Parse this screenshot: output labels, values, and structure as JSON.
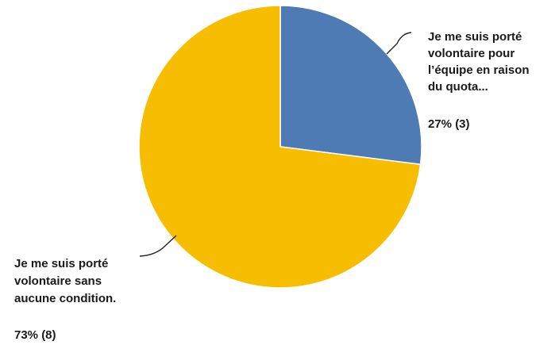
{
  "chart_data": {
    "type": "pie",
    "slices": [
      {
        "label_lines": [
          "Je me suis porté",
          "volontaire pour",
          "l’équipe en raison",
          "du quota..."
        ],
        "value_text": "27% (3)",
        "percent": 27,
        "count": 3,
        "color": "#4e7bb4"
      },
      {
        "label_lines": [
          "Je me suis porté",
          "volontaire sans",
          "aucune condition."
        ],
        "value_text": "73% (8)",
        "percent": 73,
        "count": 8,
        "color": "#f7bd00"
      }
    ],
    "legend": "none",
    "start_angle": "top, clockwise"
  }
}
